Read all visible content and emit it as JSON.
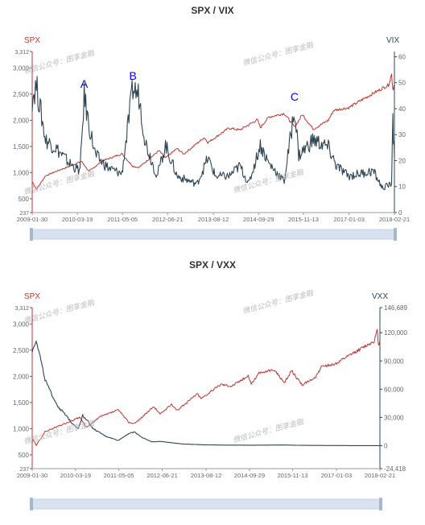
{
  "colors": {
    "spx": "#c23531",
    "vol": "#2f4554",
    "axis": "#666666",
    "ann": "#0000ee",
    "slider": "#d7e1ef"
  },
  "watermark": "微信公众号：图享金融",
  "chart_data": [
    {
      "type": "line",
      "title": "SPX / VIX",
      "x_dates": [
        "2009-01-30",
        "2010-03-19",
        "2011-05-05",
        "2012-06-21",
        "2013-08-12",
        "2014-09-29",
        "2015-11-13",
        "2017-01-03",
        "2018-02-21"
      ],
      "left_axis": {
        "label": "SPX",
        "min": 237,
        "max": 3312,
        "ticks": [
          237,
          500,
          1000,
          1500,
          2000,
          2500,
          3000,
          3312
        ],
        "tick_labels": [
          "237",
          "500",
          "1,000",
          "1,500",
          "2,000",
          "2,500",
          "3,000",
          "3,312"
        ]
      },
      "right_axis": {
        "label": "VIX",
        "min": 0,
        "max": 62,
        "ticks": [
          0,
          10,
          20,
          30,
          40,
          50,
          60
        ],
        "tick_labels": [
          "0",
          "10",
          "20",
          "30",
          "40",
          "50",
          "60"
        ]
      },
      "series": [
        {
          "name": "SPX",
          "axis": "left",
          "points": [
            [
              "2009-01-30",
              830
            ],
            [
              "2009-03-09",
              680
            ],
            [
              "2009-06-01",
              940
            ],
            [
              "2009-09-01",
              1020
            ],
            [
              "2009-12-31",
              1115
            ],
            [
              "2010-04-26",
              1215
            ],
            [
              "2010-07-02",
              1025
            ],
            [
              "2010-11-05",
              1225
            ],
            [
              "2011-04-29",
              1360
            ],
            [
              "2011-08-08",
              1120
            ],
            [
              "2011-10-03",
              1100
            ],
            [
              "2012-04-02",
              1420
            ],
            [
              "2012-06-01",
              1280
            ],
            [
              "2012-09-14",
              1460
            ],
            [
              "2012-11-15",
              1355
            ],
            [
              "2013-05-21",
              1670
            ],
            [
              "2013-06-24",
              1575
            ],
            [
              "2013-12-31",
              1850
            ],
            [
              "2014-04-11",
              1815
            ],
            [
              "2014-09-18",
              2010
            ],
            [
              "2014-10-15",
              1860
            ],
            [
              "2014-12-31",
              2060
            ],
            [
              "2015-05-21",
              2130
            ],
            [
              "2015-08-25",
              1870
            ],
            [
              "2015-11-03",
              2110
            ],
            [
              "2016-02-11",
              1830
            ],
            [
              "2016-06-27",
              2000
            ],
            [
              "2016-08-15",
              2190
            ],
            [
              "2016-12-30",
              2240
            ],
            [
              "2017-06-01",
              2430
            ],
            [
              "2017-12-29",
              2675
            ],
            [
              "2018-01-26",
              2875
            ],
            [
              "2018-02-08",
              2580
            ],
            [
              "2018-02-21",
              2700
            ]
          ]
        },
        {
          "name": "VIX",
          "axis": "right",
          "points": [
            [
              "2009-01-30",
              44
            ],
            [
              "2009-03-09",
              49
            ],
            [
              "2009-06-01",
              28
            ],
            [
              "2009-09-01",
              25
            ],
            [
              "2010-01-04",
              19
            ],
            [
              "2010-04-12",
              16
            ],
            [
              "2010-05-20",
              45
            ],
            [
              "2010-07-01",
              34
            ],
            [
              "2010-09-01",
              22
            ],
            [
              "2010-12-31",
              17
            ],
            [
              "2011-04-29",
              15
            ],
            [
              "2011-08-08",
              48
            ],
            [
              "2011-10-03",
              45
            ],
            [
              "2011-12-01",
              27
            ],
            [
              "2012-03-15",
              14
            ],
            [
              "2012-06-01",
              26
            ],
            [
              "2012-09-14",
              14
            ],
            [
              "2013-03-15",
              11
            ],
            [
              "2013-06-24",
              21
            ],
            [
              "2013-09-01",
              14
            ],
            [
              "2014-01-01",
              14
            ],
            [
              "2014-04-11",
              18
            ],
            [
              "2014-07-01",
              11
            ],
            [
              "2014-10-15",
              26
            ],
            [
              "2014-12-31",
              19
            ],
            [
              "2015-05-21",
              12
            ],
            [
              "2015-08-24",
              40
            ],
            [
              "2015-10-01",
              22
            ],
            [
              "2016-02-11",
              28
            ],
            [
              "2016-06-27",
              25
            ],
            [
              "2016-09-09",
              18
            ],
            [
              "2016-12-30",
              14
            ],
            [
              "2017-04-13",
              15
            ],
            [
              "2017-08-11",
              16
            ],
            [
              "2017-11-03",
              9.5
            ],
            [
              "2018-01-26",
              11
            ],
            [
              "2018-02-05",
              37
            ],
            [
              "2018-02-12",
              29
            ],
            [
              "2018-02-21",
              21
            ]
          ]
        }
      ],
      "annotations": [
        {
          "text": "A",
          "date": "2010-05-20"
        },
        {
          "text": "B",
          "date": "2011-08-08"
        },
        {
          "text": "C",
          "date": "2015-08-24"
        }
      ]
    },
    {
      "type": "line",
      "title": "SPX / VXX",
      "x_dates": [
        "2009-01-30",
        "2010-03-19",
        "2011-05-05",
        "2012-06-21",
        "2013-08-12",
        "2014-09-29",
        "2015-11-13",
        "2017-01-03",
        "2018-02-21"
      ],
      "left_axis": {
        "label": "SPX",
        "min": 237,
        "max": 3312,
        "ticks": [
          237,
          500,
          1000,
          1500,
          2000,
          2500,
          3000,
          3312
        ],
        "tick_labels": [
          "237",
          "500",
          "1,000",
          "1,500",
          "2,000",
          "2,500",
          "3,000",
          "3,312"
        ]
      },
      "right_axis": {
        "label": "VXX",
        "min": -24418,
        "max": 146689,
        "ticks": [
          -24418,
          0,
          30000,
          60000,
          90000,
          120000,
          146689
        ],
        "tick_labels": [
          "-24,418",
          "0",
          "30,000",
          "60,000",
          "90,000",
          "120,000",
          "146,689"
        ]
      },
      "series": [
        {
          "name": "SPX",
          "axis": "left",
          "points": [
            [
              "2009-01-30",
              830
            ],
            [
              "2009-03-09",
              680
            ],
            [
              "2009-06-01",
              940
            ],
            [
              "2009-09-01",
              1020
            ],
            [
              "2009-12-31",
              1115
            ],
            [
              "2010-04-26",
              1215
            ],
            [
              "2010-07-02",
              1025
            ],
            [
              "2010-11-05",
              1225
            ],
            [
              "2011-04-29",
              1360
            ],
            [
              "2011-08-08",
              1120
            ],
            [
              "2011-10-03",
              1100
            ],
            [
              "2012-04-02",
              1420
            ],
            [
              "2012-06-01",
              1280
            ],
            [
              "2012-09-14",
              1460
            ],
            [
              "2012-11-15",
              1355
            ],
            [
              "2013-05-21",
              1670
            ],
            [
              "2013-06-24",
              1575
            ],
            [
              "2013-12-31",
              1850
            ],
            [
              "2014-04-11",
              1815
            ],
            [
              "2014-09-18",
              2010
            ],
            [
              "2014-10-15",
              1860
            ],
            [
              "2014-12-31",
              2060
            ],
            [
              "2015-05-21",
              2130
            ],
            [
              "2015-08-25",
              1870
            ],
            [
              "2015-11-03",
              2110
            ],
            [
              "2016-02-11",
              1830
            ],
            [
              "2016-06-27",
              2000
            ],
            [
              "2016-08-15",
              2190
            ],
            [
              "2016-12-30",
              2240
            ],
            [
              "2017-06-01",
              2430
            ],
            [
              "2017-12-29",
              2675
            ],
            [
              "2018-01-26",
              2875
            ],
            [
              "2018-02-08",
              2580
            ],
            [
              "2018-02-21",
              2700
            ]
          ]
        },
        {
          "name": "VXX",
          "axis": "right",
          "points": [
            [
              "2009-01-30",
              100000
            ],
            [
              "2009-03-09",
              112000
            ],
            [
              "2009-04-15",
              95000
            ],
            [
              "2009-06-01",
              70000
            ],
            [
              "2009-08-01",
              55000
            ],
            [
              "2009-10-01",
              42000
            ],
            [
              "2009-12-31",
              30000
            ],
            [
              "2010-02-15",
              24000
            ],
            [
              "2010-04-15",
              18000
            ],
            [
              "2010-05-25",
              32000
            ],
            [
              "2010-07-01",
              28000
            ],
            [
              "2010-09-01",
              18000
            ],
            [
              "2010-12-31",
              10000
            ],
            [
              "2011-04-29",
              5500
            ],
            [
              "2011-08-08",
              13000
            ],
            [
              "2011-10-03",
              14500
            ],
            [
              "2011-12-15",
              8500
            ],
            [
              "2012-03-15",
              4000
            ],
            [
              "2012-06-01",
              4500
            ],
            [
              "2012-12-31",
              1800
            ],
            [
              "2013-06-24",
              1000
            ],
            [
              "2013-12-31",
              600
            ],
            [
              "2014-10-15",
              500
            ],
            [
              "2015-08-24",
              700
            ],
            [
              "2016-02-11",
              300
            ],
            [
              "2016-12-30",
              120
            ],
            [
              "2017-12-29",
              30
            ],
            [
              "2018-02-21",
              30
            ]
          ]
        }
      ]
    }
  ]
}
